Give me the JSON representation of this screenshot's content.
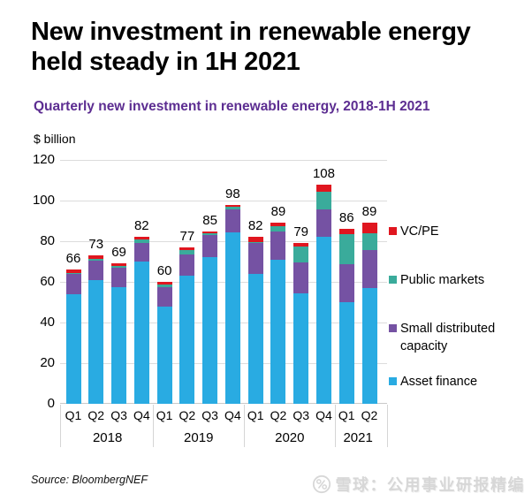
{
  "header": {
    "title": "New investment in renewable energy held steady in 1H 2021",
    "subtitle": "Quarterly new investment in renewable energy, 2018-1H 2021",
    "subtitle_color": "#5C2D91"
  },
  "chart_data": {
    "type": "bar",
    "stacked": true,
    "title": "Quarterly new investment in renewable energy, 2018-1H 2021",
    "xlabel": "",
    "ylabel": "$ billion",
    "ylim": [
      0,
      120
    ],
    "ytick_step": 20,
    "grid": "horizontal",
    "legend_position": "right",
    "categories": [
      "Q1",
      "Q2",
      "Q3",
      "Q4",
      "Q1",
      "Q2",
      "Q3",
      "Q4",
      "Q1",
      "Q2",
      "Q3",
      "Q4",
      "Q1",
      "Q2"
    ],
    "year_groups": [
      {
        "label": "2018",
        "span": 4
      },
      {
        "label": "2019",
        "span": 4
      },
      {
        "label": "2020",
        "span": 4
      },
      {
        "label": "2021",
        "span": 2
      }
    ],
    "totals": [
      66,
      73,
      69,
      82,
      60,
      77,
      85,
      98,
      82,
      89,
      79,
      108,
      86,
      89
    ],
    "series": [
      {
        "name": "Asset finance",
        "color": "#29ABE2",
        "values": [
          54,
          61,
          57.5,
          70,
          48,
          63,
          72,
          84.5,
          64,
          71,
          54.5,
          82,
          50,
          57
        ]
      },
      {
        "name": "Small distributed capacity",
        "color": "#7552A3",
        "values": [
          10,
          9.5,
          9.5,
          9,
          9.5,
          10.5,
          11,
          11,
          15,
          14,
          15,
          13.5,
          18.5,
          18.5
        ]
      },
      {
        "name": "Public markets",
        "color": "#3AAB9B",
        "values": [
          0.5,
          1,
          0.7,
          1.7,
          1.2,
          2,
          0.8,
          1.5,
          0.5,
          2.5,
          8,
          9,
          15,
          8.5
        ]
      },
      {
        "name": "VC/PE",
        "color": "#E0161F",
        "values": [
          1.5,
          1.5,
          1.3,
          1.3,
          1.3,
          1.5,
          1.2,
          1,
          2.5,
          1.5,
          1.5,
          3.5,
          2.5,
          5
        ]
      }
    ]
  },
  "footer": {
    "source": "Source: BloombergNEF",
    "watermark": "雪球：公用事业研报精编"
  }
}
